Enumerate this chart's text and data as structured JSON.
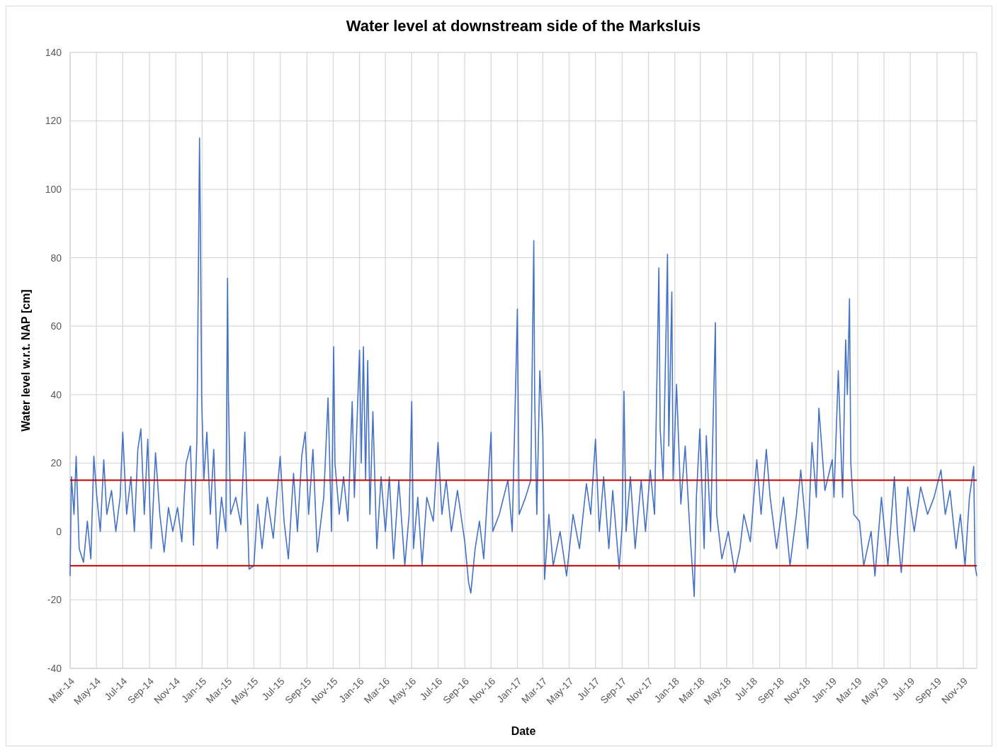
{
  "chart_data": {
    "type": "line",
    "title": "Water level at downstream side of the Marksluis",
    "xlabel": "Date",
    "ylabel": "Water level w.r.t. NAP [cm]",
    "x": [
      "2014-03-01",
      "2014-03-04",
      "2014-03-10",
      "2014-03-15",
      "2014-03-22",
      "2014-04-01",
      "2014-04-10",
      "2014-04-18",
      "2014-04-25",
      "2014-05-02",
      "2014-05-10",
      "2014-05-18",
      "2014-05-25",
      "2014-06-05",
      "2014-06-15",
      "2014-06-25",
      "2014-07-01",
      "2014-07-10",
      "2014-07-20",
      "2014-07-28",
      "2014-08-05",
      "2014-08-12",
      "2014-08-20",
      "2014-08-28",
      "2014-09-05",
      "2014-09-15",
      "2014-09-25",
      "2014-10-05",
      "2014-10-15",
      "2014-10-25",
      "2014-11-05",
      "2014-11-15",
      "2014-11-25",
      "2014-12-05",
      "2014-12-12",
      "2014-12-20",
      "2014-12-24",
      "2014-12-26",
      "2014-12-28",
      "2014-12-31",
      "2015-01-05",
      "2015-01-12",
      "2015-01-20",
      "2015-01-28",
      "2015-02-05",
      "2015-02-15",
      "2015-02-25",
      "2015-03-01",
      "2015-03-03",
      "2015-03-08",
      "2015-03-20",
      "2015-04-01",
      "2015-04-10",
      "2015-04-20",
      "2015-05-01",
      "2015-05-10",
      "2015-05-20",
      "2015-06-01",
      "2015-06-15",
      "2015-07-01",
      "2015-07-10",
      "2015-07-20",
      "2015-08-01",
      "2015-08-10",
      "2015-08-20",
      "2015-08-28",
      "2015-09-05",
      "2015-09-15",
      "2015-09-25",
      "2015-10-10",
      "2015-10-20",
      "2015-10-28",
      "2015-11-02",
      "2015-11-05",
      "2015-11-15",
      "2015-11-25",
      "2015-12-05",
      "2015-12-15",
      "2015-12-20",
      "2016-01-01",
      "2016-01-05",
      "2016-01-10",
      "2016-01-15",
      "2016-01-20",
      "2016-01-25",
      "2016-02-01",
      "2016-02-10",
      "2016-02-20",
      "2016-03-01",
      "2016-03-10",
      "2016-03-20",
      "2016-04-01",
      "2016-04-15",
      "2016-04-25",
      "2016-05-01",
      "2016-05-05",
      "2016-05-15",
      "2016-05-25",
      "2016-06-05",
      "2016-06-20",
      "2016-07-01",
      "2016-07-10",
      "2016-07-20",
      "2016-08-01",
      "2016-08-15",
      "2016-09-01",
      "2016-09-10",
      "2016-09-15",
      "2016-09-25",
      "2016-10-05",
      "2016-10-15",
      "2016-11-01",
      "2016-11-05",
      "2016-11-20",
      "2016-12-10",
      "2016-12-20",
      "2017-01-01",
      "2017-01-05",
      "2017-01-20",
      "2017-02-01",
      "2017-02-08",
      "2017-02-10",
      "2017-02-15",
      "2017-02-22",
      "2017-03-01",
      "2017-03-05",
      "2017-03-15",
      "2017-03-25",
      "2017-04-10",
      "2017-04-25",
      "2017-05-10",
      "2017-05-25",
      "2017-06-10",
      "2017-06-20",
      "2017-07-01",
      "2017-07-10",
      "2017-07-20",
      "2017-08-01",
      "2017-08-10",
      "2017-08-25",
      "2017-09-01",
      "2017-09-05",
      "2017-09-10",
      "2017-09-20",
      "2017-10-01",
      "2017-10-15",
      "2017-10-25",
      "2017-11-05",
      "2017-11-15",
      "2017-11-25",
      "2017-11-28",
      "2017-12-05",
      "2017-12-15",
      "2017-12-18",
      "2017-12-25",
      "2017-12-28",
      "2018-01-05",
      "2018-01-15",
      "2018-01-25",
      "2018-02-05",
      "2018-02-15",
      "2018-02-20",
      "2018-02-28",
      "2018-03-10",
      "2018-03-15",
      "2018-03-25",
      "2018-04-05",
      "2018-04-08",
      "2018-04-20",
      "2018-05-05",
      "2018-05-20",
      "2018-06-01",
      "2018-06-10",
      "2018-06-25",
      "2018-07-10",
      "2018-07-20",
      "2018-08-01",
      "2018-08-10",
      "2018-08-25",
      "2018-09-10",
      "2018-09-25",
      "2018-10-10",
      "2018-10-20",
      "2018-11-05",
      "2018-11-15",
      "2018-11-25",
      "2018-12-01",
      "2018-12-15",
      "2019-01-01",
      "2019-01-05",
      "2019-01-15",
      "2019-01-25",
      "2019-02-01",
      "2019-02-05",
      "2019-02-10",
      "2019-02-13",
      "2019-02-20",
      "2019-03-05",
      "2019-03-15",
      "2019-04-01",
      "2019-04-10",
      "2019-04-25",
      "2019-05-10",
      "2019-05-25",
      "2019-06-01",
      "2019-06-10",
      "2019-06-25",
      "2019-07-10",
      "2019-07-25",
      "2019-08-10",
      "2019-08-25",
      "2019-09-10",
      "2019-09-20",
      "2019-10-01",
      "2019-10-15",
      "2019-10-25",
      "2019-11-05",
      "2019-11-15",
      "2019-11-25",
      "2019-11-28",
      "2019-12-02"
    ],
    "series": [
      {
        "color": "#4472c4",
        "values": [
          -13,
          16,
          5,
          22,
          -5,
          -9,
          3,
          -8,
          22,
          10,
          0,
          21,
          5,
          12,
          0,
          10,
          29,
          5,
          16,
          0,
          24,
          30,
          5,
          27,
          -5,
          23,
          5,
          -6,
          7,
          0,
          7,
          -3,
          20,
          25,
          -4,
          27,
          85,
          115,
          90,
          39,
          15,
          29,
          5,
          24,
          -5,
          10,
          0,
          74,
          40,
          5,
          10,
          2,
          29,
          -11,
          -10,
          8,
          -5,
          10,
          -2,
          22,
          3,
          -8,
          17,
          0,
          22,
          29,
          5,
          24,
          -6,
          10,
          39,
          0,
          54,
          20,
          5,
          16,
          3,
          38,
          10,
          53,
          20,
          54,
          15,
          50,
          5,
          35,
          -5,
          16,
          0,
          16,
          -8,
          15,
          -10,
          5,
          38,
          -5,
          10,
          -10,
          10,
          3,
          26,
          5,
          15,
          0,
          12,
          -3,
          -15,
          -18,
          -5,
          3,
          -8,
          29,
          0,
          5,
          15,
          0,
          65,
          5,
          10,
          15,
          85,
          40,
          5,
          47,
          28,
          -14,
          5,
          -10,
          0,
          -13,
          5,
          -5,
          14,
          5,
          27,
          0,
          16,
          -5,
          12,
          -11,
          2,
          41,
          0,
          16,
          -5,
          15,
          0,
          18,
          5,
          77,
          30,
          15,
          81,
          25,
          70,
          15,
          43,
          8,
          25,
          0,
          -19,
          10,
          30,
          -5,
          28,
          0,
          61,
          5,
          -8,
          0,
          -12,
          -5,
          5,
          -3,
          21,
          5,
          24,
          10,
          -5,
          10,
          -10,
          5,
          18,
          -5,
          26,
          10,
          36,
          12,
          21,
          10,
          47,
          10,
          56,
          40,
          68,
          20,
          5,
          3,
          -10,
          0,
          -13,
          10,
          -10,
          16,
          0,
          -12,
          13,
          0,
          13,
          5,
          10,
          18,
          5,
          12,
          -5,
          5,
          -10,
          10,
          19,
          -10,
          -13
        ]
      }
    ],
    "xlim": [
      "2014-03-01",
      "2019-12-02"
    ],
    "xticks": [
      {
        "value": "2014-03-01",
        "label": "Mar-14"
      },
      {
        "value": "2014-05-01",
        "label": "May-14"
      },
      {
        "value": "2014-07-01",
        "label": "Jul-14"
      },
      {
        "value": "2014-09-01",
        "label": "Sep-14"
      },
      {
        "value": "2014-11-01",
        "label": "Nov-14"
      },
      {
        "value": "2015-01-01",
        "label": "Jan-15"
      },
      {
        "value": "2015-03-01",
        "label": "Mar-15"
      },
      {
        "value": "2015-05-01",
        "label": "May-15"
      },
      {
        "value": "2015-07-01",
        "label": "Jul-15"
      },
      {
        "value": "2015-09-01",
        "label": "Sep-15"
      },
      {
        "value": "2015-11-01",
        "label": "Nov-15"
      },
      {
        "value": "2016-01-01",
        "label": "Jan-16"
      },
      {
        "value": "2016-03-01",
        "label": "Mar-16"
      },
      {
        "value": "2016-05-01",
        "label": "May-16"
      },
      {
        "value": "2016-07-01",
        "label": "Jul-16"
      },
      {
        "value": "2016-09-01",
        "label": "Sep-16"
      },
      {
        "value": "2016-11-01",
        "label": "Nov-16"
      },
      {
        "value": "2017-01-01",
        "label": "Jan-17"
      },
      {
        "value": "2017-03-01",
        "label": "Mar-17"
      },
      {
        "value": "2017-05-01",
        "label": "May-17"
      },
      {
        "value": "2017-07-01",
        "label": "Jul-17"
      },
      {
        "value": "2017-09-01",
        "label": "Sep-17"
      },
      {
        "value": "2017-11-01",
        "label": "Nov-17"
      },
      {
        "value": "2018-01-01",
        "label": "Jan-18"
      },
      {
        "value": "2018-03-01",
        "label": "Mar-18"
      },
      {
        "value": "2018-05-01",
        "label": "May-18"
      },
      {
        "value": "2018-07-01",
        "label": "Jul-18"
      },
      {
        "value": "2018-09-01",
        "label": "Sep-18"
      },
      {
        "value": "2018-11-01",
        "label": "Nov-18"
      },
      {
        "value": "2019-01-01",
        "label": "Jan-19"
      },
      {
        "value": "2019-03-01",
        "label": "Mar-19"
      },
      {
        "value": "2019-05-01",
        "label": "May-19"
      },
      {
        "value": "2019-07-01",
        "label": "Jul-19"
      },
      {
        "value": "2019-09-01",
        "label": "Sep-19"
      },
      {
        "value": "2019-11-01",
        "label": "Nov-19"
      }
    ],
    "ylim": [
      -40,
      140
    ],
    "yticks": [
      -40,
      -20,
      0,
      20,
      40,
      60,
      80,
      100,
      120,
      140
    ],
    "ref_lines": [
      {
        "axis": "y",
        "value": 15,
        "color": "#c00000"
      },
      {
        "axis": "y",
        "value": -10,
        "color": "#c00000"
      }
    ],
    "grid": true,
    "line_style": "solid"
  }
}
